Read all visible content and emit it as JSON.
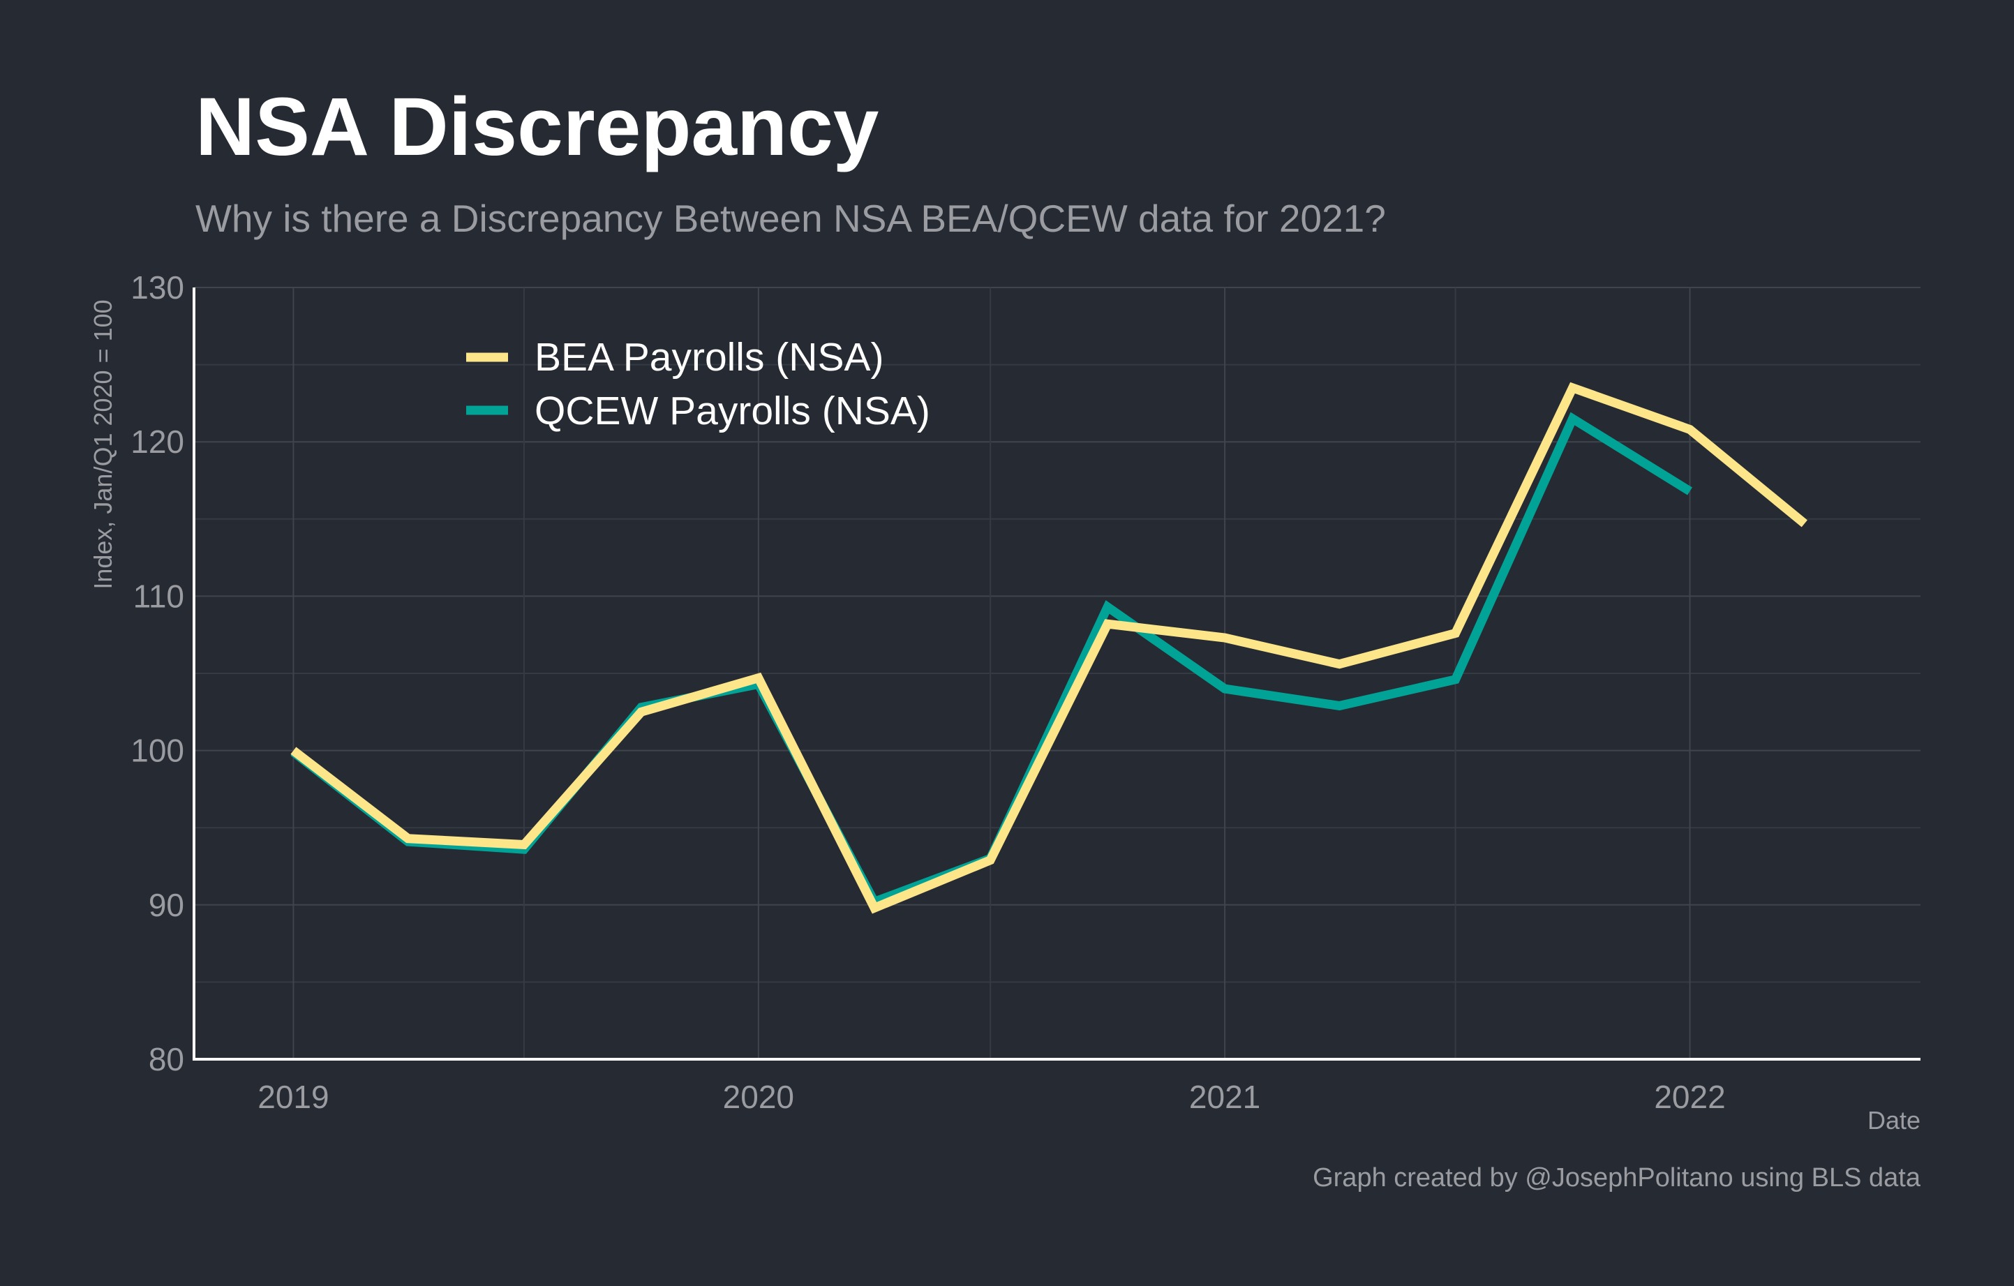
{
  "colors": {
    "background": "#252a33",
    "bea": "#fde58a",
    "qcew": "#00a396",
    "grid": "#40444d",
    "text_muted": "#9a9ca1",
    "title": "#ffffff"
  },
  "chart_data": {
    "type": "line",
    "title": "NSA Discrepancy",
    "subtitle": "Why is there a Discrepancy Between NSA BEA/QCEW data for 2021?",
    "xlabel": "Date",
    "ylabel": "Index, Jan/Q1 2020 = 100",
    "caption": "Graph created by @JosephPolitano using BLS data",
    "x_ticks": [
      "2019",
      "2020",
      "2021",
      "2022"
    ],
    "y_ticks": [
      "80",
      "90",
      "100",
      "110",
      "120",
      "130"
    ],
    "ylim": [
      80,
      130
    ],
    "xlim": [
      "2018-10-15",
      "2022-07-01"
    ],
    "grid": true,
    "legend_position": "top-left",
    "series": [
      {
        "name": "BEA Payrolls (NSA)",
        "color": "#fde58a",
        "points": [
          {
            "date": "2019-01-01",
            "value": 100.0
          },
          {
            "date": "2019-04-01",
            "value": 94.3
          },
          {
            "date": "2019-07-01",
            "value": 93.9
          },
          {
            "date": "2019-10-01",
            "value": 102.5
          },
          {
            "date": "2020-01-01",
            "value": 104.7
          },
          {
            "date": "2020-04-01",
            "value": 89.8
          },
          {
            "date": "2020-07-01",
            "value": 92.9
          },
          {
            "date": "2020-10-01",
            "value": 108.2
          },
          {
            "date": "2021-01-01",
            "value": 107.3
          },
          {
            "date": "2021-04-01",
            "value": 105.6
          },
          {
            "date": "2021-07-01",
            "value": 107.6
          },
          {
            "date": "2021-10-01",
            "value": 123.5
          },
          {
            "date": "2022-01-01",
            "value": 120.8
          },
          {
            "date": "2022-04-01",
            "value": 114.7
          }
        ]
      },
      {
        "name": "QCEW Payrolls (NSA)",
        "color": "#00a396",
        "points": [
          {
            "date": "2019-01-01",
            "value": 99.9
          },
          {
            "date": "2019-04-01",
            "value": 94.1
          },
          {
            "date": "2019-07-01",
            "value": 93.6
          },
          {
            "date": "2019-10-01",
            "value": 102.8
          },
          {
            "date": "2020-01-01",
            "value": 104.3
          },
          {
            "date": "2020-04-01",
            "value": 90.2
          },
          {
            "date": "2020-07-01",
            "value": 93.0
          },
          {
            "date": "2020-10-01",
            "value": 109.3
          },
          {
            "date": "2021-01-01",
            "value": 104.0
          },
          {
            "date": "2021-04-01",
            "value": 102.9
          },
          {
            "date": "2021-07-01",
            "value": 104.6
          },
          {
            "date": "2021-10-01",
            "value": 121.5
          },
          {
            "date": "2022-01-01",
            "value": 116.8
          }
        ]
      }
    ]
  }
}
